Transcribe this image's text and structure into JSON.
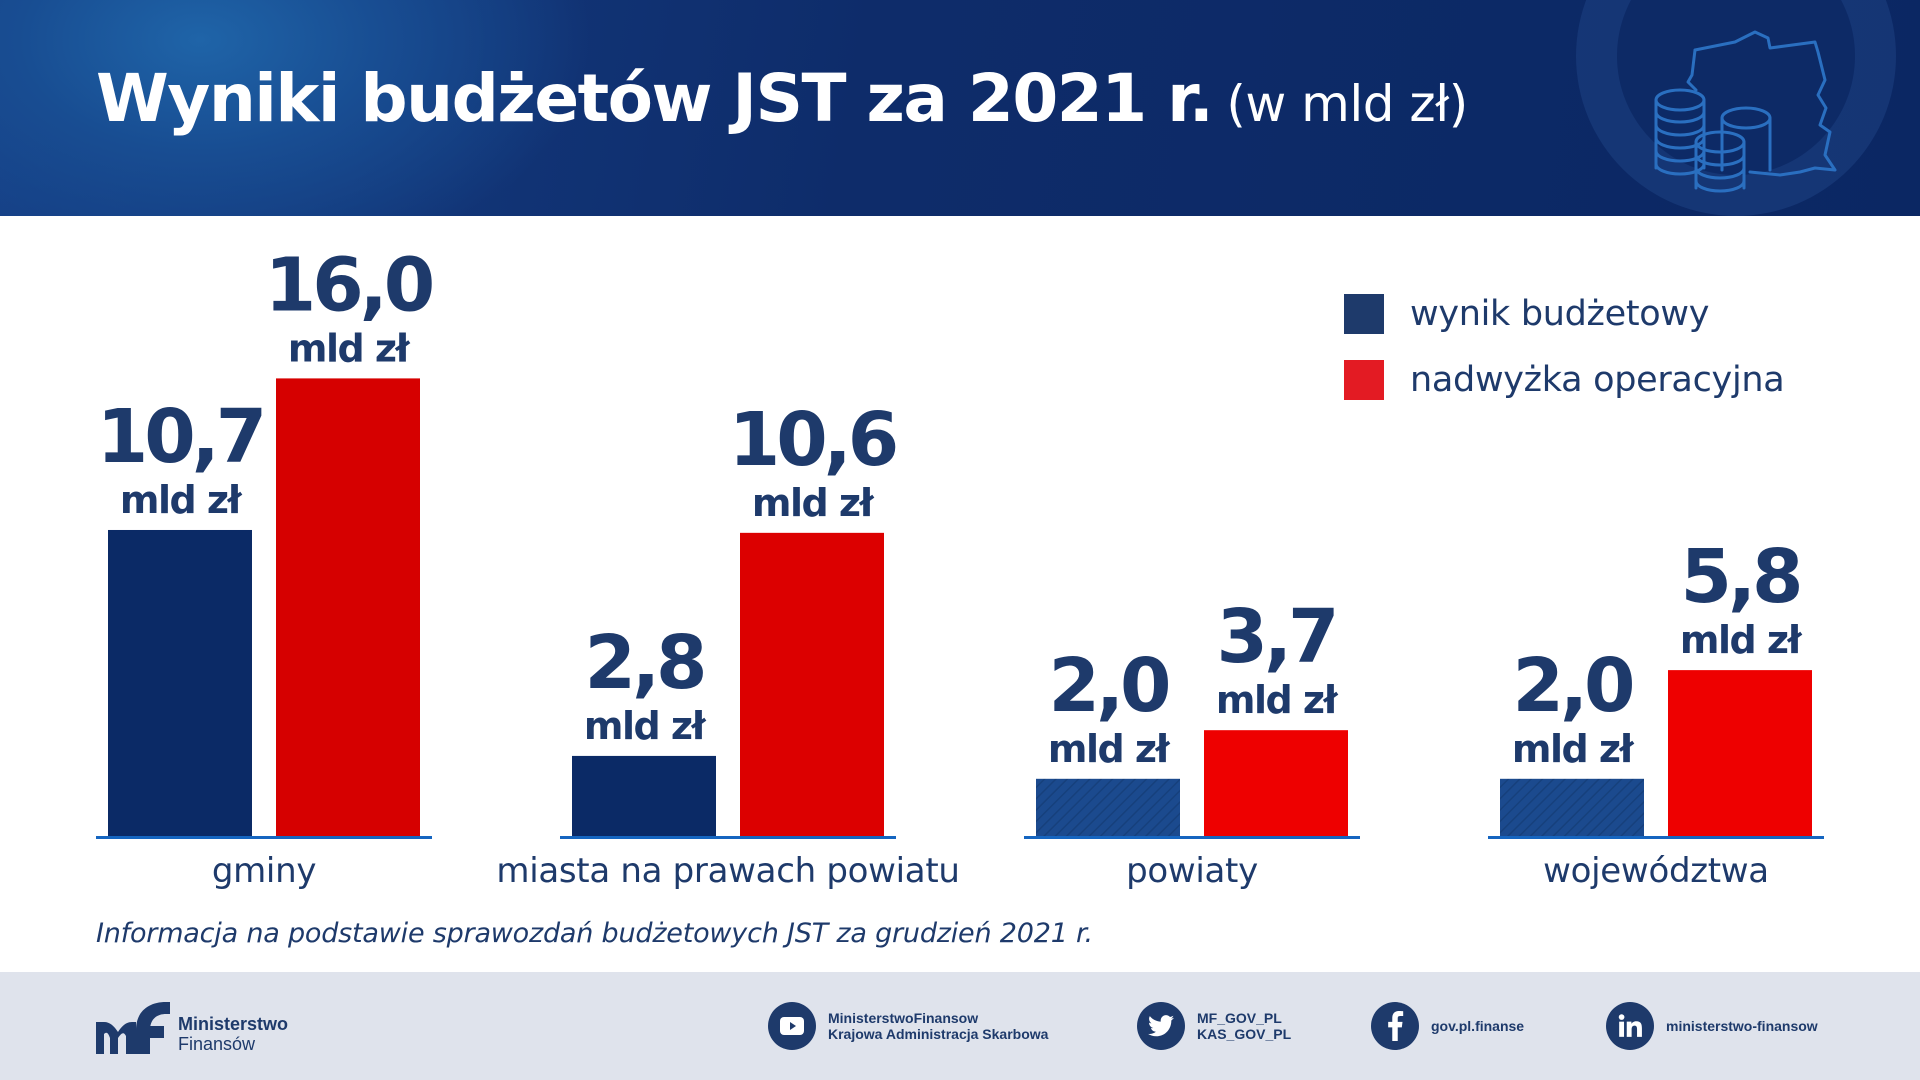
{
  "header": {
    "title": "Wyniki budżetów JST za 2021 r.",
    "unit": "(w mld zł)",
    "emblem_icon": "poland-map-coins-icon"
  },
  "chart_data": {
    "type": "bar",
    "title": "Wyniki budżetów JST za 2021 r.",
    "subtitle": "(w mld zł)",
    "xlabel": "",
    "ylabel": "",
    "unit_label": "mld zł",
    "ylim": [
      0,
      17
    ],
    "grid": false,
    "legend_position": "top-right",
    "categories": [
      "gminy",
      "miasta na prawach powiatu",
      "powiaty",
      "województwa"
    ],
    "series": [
      {
        "name": "wynik budżetowy",
        "color": "#0b2a66",
        "values": [
          10.7,
          2.8,
          2.0,
          2.0
        ],
        "labels": [
          "10,7",
          "2,8",
          "2,0",
          "2,0"
        ]
      },
      {
        "name": "nadwyżka operacyjna",
        "color": "#e00000",
        "values": [
          16.0,
          10.6,
          3.7,
          5.8
        ],
        "labels": [
          "16,0",
          "10,6",
          "3,7",
          "5,8"
        ]
      }
    ]
  },
  "legend": {
    "items": [
      {
        "label": "wynik budżetowy",
        "color": "#1e3a6b"
      },
      {
        "label": "nadwyżka operacyjna",
        "color": "#e31b23"
      }
    ]
  },
  "footnote": "Informacja na podstawie sprawozdań budżetowych JST za grudzień 2021 r.",
  "footer": {
    "logo": {
      "line1": "Ministerstwo",
      "line2": "Finansów"
    },
    "social": [
      {
        "icon": "youtube-icon",
        "line1": "MinisterstwoFinansow",
        "line2": "Krajowa Administracja Skarbowa"
      },
      {
        "icon": "twitter-icon",
        "line1": "MF_GOV_PL",
        "line2": "KAS_GOV_PL"
      },
      {
        "icon": "facebook-icon",
        "line1": "gov.pl.finanse"
      },
      {
        "icon": "linkedin-icon",
        "line1": "ministerstwo-finansow"
      }
    ]
  },
  "colors": {
    "navy": "#1e3a6b",
    "header_bg": "#0e2c6a",
    "footer_bg": "#dfe3ec",
    "axis": "#1565c0"
  }
}
